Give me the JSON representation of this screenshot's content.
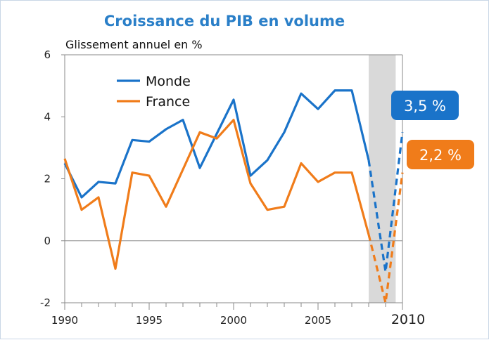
{
  "chart_data": {
    "type": "line",
    "title": "Croissance du PIB en volume",
    "ylabel": "Glissement annuel en %",
    "xlim": [
      1990,
      2010
    ],
    "ylim": [
      -2,
      6
    ],
    "y_ticks": [
      -2,
      0,
      2,
      4,
      6
    ],
    "x_tick_labels": [
      "1990",
      "1995",
      "2000",
      "2005",
      "2010"
    ],
    "grid": false,
    "legend_position": "top-left",
    "forecast_shading": {
      "from": 2008,
      "to": 2009.6,
      "color": "#d9d9d9"
    },
    "series": [
      {
        "name": "Monde",
        "color": "#1a73c9",
        "x": [
          1990,
          1991,
          1992,
          1993,
          1994,
          1995,
          1996,
          1997,
          1998,
          1999,
          2000,
          2001,
          2002,
          2003,
          2004,
          2005,
          2006,
          2007,
          2008
        ],
        "values": [
          2.5,
          1.4,
          1.9,
          1.85,
          3.25,
          3.2,
          3.6,
          3.9,
          2.35,
          3.45,
          4.55,
          2.1,
          2.6,
          3.5,
          4.75,
          4.25,
          4.85,
          4.85,
          2.6
        ],
        "forecast": {
          "x": [
            2008,
            2009,
            2010
          ],
          "values": [
            2.6,
            -1.0,
            3.5
          ]
        },
        "callout": "3,5 %"
      },
      {
        "name": "France",
        "color": "#f07c1a",
        "x": [
          1990,
          1991,
          1992,
          1993,
          1994,
          1995,
          1996,
          1997,
          1998,
          1999,
          2000,
          2001,
          2002,
          2003,
          2004,
          2005,
          2006,
          2007,
          2008
        ],
        "values": [
          2.65,
          1.0,
          1.4,
          -0.9,
          2.2,
          2.1,
          1.1,
          2.3,
          3.5,
          3.3,
          3.9,
          1.85,
          1.0,
          1.1,
          2.5,
          1.9,
          2.2,
          2.2,
          0.2
        ],
        "forecast": {
          "x": [
            2008,
            2009,
            2010
          ],
          "values": [
            0.2,
            -2.0,
            2.2
          ]
        },
        "callout": "2,2 %"
      }
    ]
  }
}
